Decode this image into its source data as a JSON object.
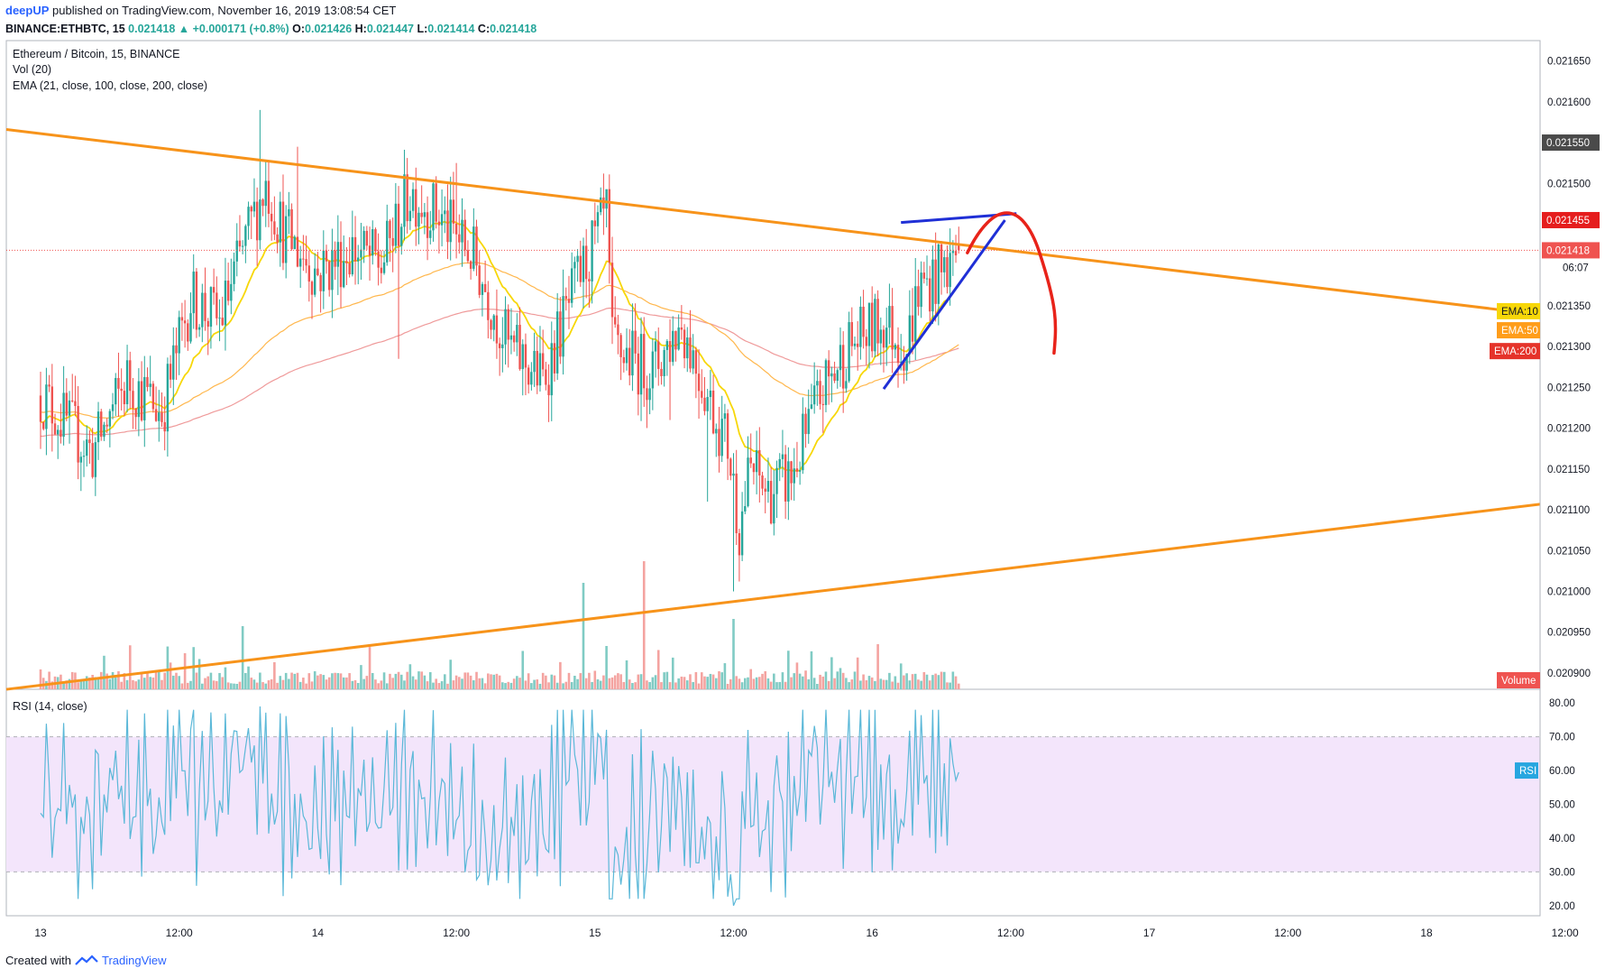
{
  "header": {
    "author": "deepUP",
    "published": "published on TradingView.com, November 16, 2019 13:08:54 CET",
    "symbol": "BINANCE:ETHBTC, 15",
    "price": "0.021418",
    "change": "+0.000171 (+0.8%)",
    "o_label": "O:",
    "o": "0.021426",
    "h_label": "H:",
    "h": "0.021447",
    "l_label": "L:",
    "l": "0.021414",
    "c_label": "C:",
    "c": "0.021418"
  },
  "legend": {
    "title": "Ethereum / Bitcoin, 15, BINANCE",
    "vol": "Vol (20)",
    "ema": "EMA (21, close, 100, close, 200, close)",
    "rsi": "RSI (14, close)"
  },
  "price_axis": {
    "ticks": [
      "0.021650",
      "0.021600",
      "0.021550",
      "0.021500",
      "0.021455",
      "0.021418",
      "0.021350",
      "0.021300",
      "0.021250",
      "0.021200",
      "0.021150",
      "0.021100",
      "0.021050",
      "0.021000",
      "0.020950",
      "0.020900"
    ],
    "badge_high": "0.021550",
    "badge_last": "0.021455",
    "badge_close": "0.021418",
    "badge_countdown": "06:07",
    "ema10": "EMA:10",
    "ema50": "EMA:50",
    "ema200": "EMA:200",
    "volume": "Volume"
  },
  "rsi_axis": {
    "ticks": [
      "80.00",
      "70.00",
      "60.00",
      "50.00",
      "40.00",
      "30.00",
      "20.00"
    ],
    "badge": "RSI"
  },
  "time_axis": {
    "ticks": [
      "13",
      "12:00",
      "14",
      "12:00",
      "15",
      "12:00",
      "16",
      "12:00",
      "17",
      "12:00",
      "18",
      "12:00"
    ]
  },
  "colors": {
    "up": "#26a69a",
    "down": "#ef5350",
    "ema21": "#f7d708",
    "ema100": "#ffb74d",
    "ema200": "#ef9a9a",
    "trend_orange": "#f7931a",
    "wedge_blue": "#1f2fd6",
    "arc_red": "#e8231a",
    "rsi_line": "#5bb8d8",
    "rsi_band": "#f3e5fb"
  },
  "footer": {
    "created": "Created with",
    "brand": "TradingView"
  },
  "chart_data": {
    "type": "candlestick",
    "title": "Ethereum / Bitcoin, 15, BINANCE",
    "ylim": [
      0.02088,
      0.021675
    ],
    "x_start": "2019-11-13T00:00",
    "x_interval_minutes": 15,
    "series": [
      {
        "name": "EMA:10"
      },
      {
        "name": "EMA:50"
      },
      {
        "name": "EMA:200"
      },
      {
        "name": "Volume"
      },
      {
        "name": "RSI (14, close)"
      }
    ],
    "rsi_band": [
      30,
      70
    ],
    "rsi_ylim": [
      17,
      83
    ],
    "price_keypoints": [
      [
        0,
        0.02124
      ],
      [
        18,
        0.02117
      ],
      [
        30,
        0.02126
      ],
      [
        42,
        0.02122
      ],
      [
        52,
        0.02136
      ],
      [
        62,
        0.02133
      ],
      [
        72,
        0.02144
      ],
      [
        78,
        0.0215
      ],
      [
        84,
        0.02144
      ],
      [
        96,
        0.02139
      ],
      [
        108,
        0.02142
      ],
      [
        118,
        0.0214
      ],
      [
        128,
        0.02149
      ],
      [
        138,
        0.02146
      ],
      [
        150,
        0.02141
      ],
      [
        162,
        0.0213
      ],
      [
        174,
        0.02126
      ],
      [
        186,
        0.02138
      ],
      [
        196,
        0.02146
      ],
      [
        198,
        0.0213
      ],
      [
        212,
        0.02127
      ],
      [
        222,
        0.02133
      ],
      [
        232,
        0.02123
      ],
      [
        238,
        0.02118
      ],
      [
        242,
        0.02108
      ],
      [
        246,
        0.02115
      ],
      [
        252,
        0.02112
      ],
      [
        260,
        0.02114
      ],
      [
        270,
        0.02124
      ],
      [
        280,
        0.0213
      ],
      [
        292,
        0.02133
      ],
      [
        300,
        0.0213
      ],
      [
        304,
        0.02137
      ],
      [
        312,
        0.02139
      ],
      [
        318,
        0.02142
      ]
    ],
    "trendlines": [
      {
        "name": "upper",
        "from": [
          "2019-11-13T00:00",
          0.021561
        ],
        "to": [
          "2019-11-18T00:00",
          0.021356
        ]
      },
      {
        "name": "lower",
        "from": [
          "2019-11-13T00:00",
          0.020885
        ],
        "to": [
          "2019-11-18T00:00",
          0.02109
        ]
      }
    ]
  }
}
